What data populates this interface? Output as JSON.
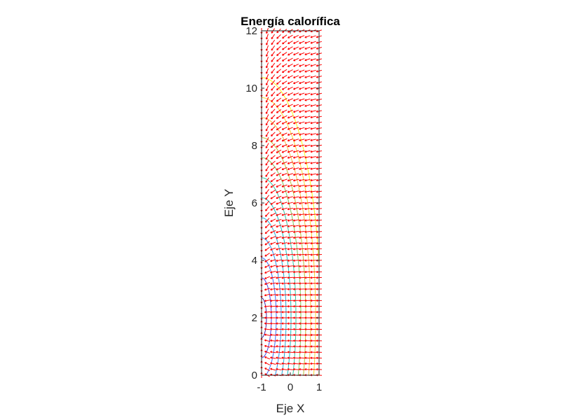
{
  "chart_data": {
    "type": "contour+quiver",
    "title": "Energía calorífica",
    "xlabel": "Eje X",
    "ylabel": "Eje Y",
    "xlim": [
      -1,
      1
    ],
    "ylim": [
      0,
      12
    ],
    "xticks": [
      -1,
      0,
      1
    ],
    "yticks": [
      0,
      2,
      4,
      6,
      8,
      10,
      12
    ],
    "grid": false,
    "legend": null,
    "quiver": {
      "color": "#ff0000",
      "x_step": 0.2,
      "y_step": 0.2,
      "direction": "gradient of temperature field (heat flow, pointing left toward x=-1, outward from source near (-1,2))"
    },
    "contour": {
      "colormap": "parula",
      "levels": 12,
      "colors": [
        "#3e26a8",
        "#4443e3",
        "#3b6efe",
        "#2a90eb",
        "#1fabd8",
        "#12bec4",
        "#2fc5a0",
        "#7bc859",
        "#bcbd33",
        "#f4b93c",
        "#fcd42f",
        "#f9fb14"
      ],
      "description": "Concentric curves centered near (-1, 2), becoming nearly vertical lines for large y"
    }
  },
  "figure": {
    "title": "Energía calorífica",
    "xlabel": "Eje X",
    "ylabel": "Eje Y",
    "xtick_labels": [
      "-1",
      "0",
      "1"
    ],
    "ytick_labels": [
      "0",
      "2",
      "4",
      "6",
      "8",
      "10",
      "12"
    ]
  }
}
